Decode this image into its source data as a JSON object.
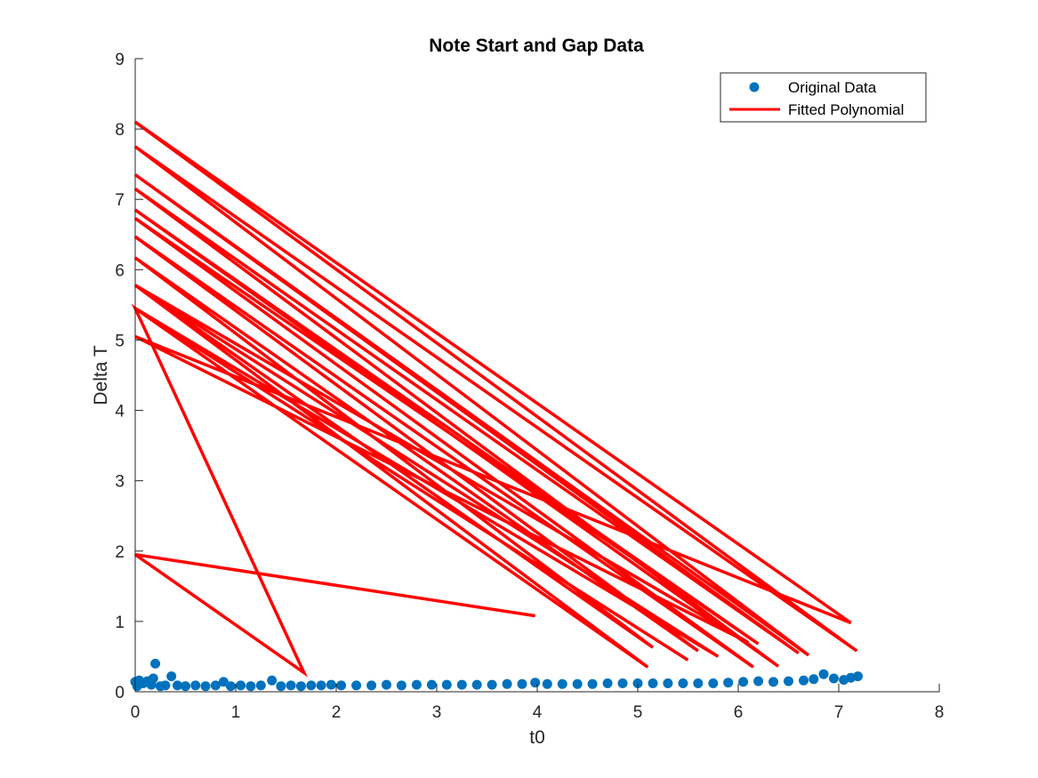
{
  "chart_data": {
    "type": "scatter",
    "title": "Note Start and Gap Data",
    "xlabel": "t0",
    "ylabel": "Delta T",
    "xlim": [
      0,
      8
    ],
    "ylim": [
      0,
      9
    ],
    "xticks": [
      0,
      1,
      2,
      3,
      4,
      5,
      6,
      7,
      8
    ],
    "yticks": [
      0,
      1,
      2,
      3,
      4,
      5,
      6,
      7,
      8,
      9
    ],
    "grid": false,
    "legend_position": "top-right",
    "colors": {
      "original": "#0072BD",
      "fitted": "#FF0000",
      "axis": "#262626"
    },
    "series": [
      {
        "name": "Original Data",
        "kind": "markers",
        "points": [
          [
            0.0,
            0.14
          ],
          [
            0.02,
            0.08
          ],
          [
            0.04,
            0.16
          ],
          [
            0.08,
            0.12
          ],
          [
            0.12,
            0.15
          ],
          [
            0.16,
            0.1
          ],
          [
            0.18,
            0.19
          ],
          [
            0.2,
            0.4
          ],
          [
            0.25,
            0.08
          ],
          [
            0.3,
            0.09
          ],
          [
            0.36,
            0.22
          ],
          [
            0.42,
            0.09
          ],
          [
            0.5,
            0.08
          ],
          [
            0.6,
            0.09
          ],
          [
            0.7,
            0.08
          ],
          [
            0.8,
            0.09
          ],
          [
            0.88,
            0.14
          ],
          [
            0.95,
            0.08
          ],
          [
            1.05,
            0.09
          ],
          [
            1.15,
            0.08
          ],
          [
            1.25,
            0.09
          ],
          [
            1.36,
            0.16
          ],
          [
            1.45,
            0.08
          ],
          [
            1.55,
            0.09
          ],
          [
            1.65,
            0.08
          ],
          [
            1.75,
            0.09
          ],
          [
            1.85,
            0.09
          ],
          [
            1.95,
            0.1
          ],
          [
            2.05,
            0.09
          ],
          [
            2.2,
            0.09
          ],
          [
            2.35,
            0.09
          ],
          [
            2.5,
            0.1
          ],
          [
            2.65,
            0.09
          ],
          [
            2.8,
            0.1
          ],
          [
            2.95,
            0.1
          ],
          [
            3.1,
            0.1
          ],
          [
            3.25,
            0.1
          ],
          [
            3.4,
            0.1
          ],
          [
            3.55,
            0.1
          ],
          [
            3.7,
            0.11
          ],
          [
            3.85,
            0.11
          ],
          [
            3.98,
            0.13
          ],
          [
            4.1,
            0.11
          ],
          [
            4.25,
            0.11
          ],
          [
            4.4,
            0.11
          ],
          [
            4.55,
            0.11
          ],
          [
            4.7,
            0.12
          ],
          [
            4.85,
            0.12
          ],
          [
            5.0,
            0.12
          ],
          [
            5.15,
            0.12
          ],
          [
            5.3,
            0.12
          ],
          [
            5.45,
            0.12
          ],
          [
            5.6,
            0.12
          ],
          [
            5.75,
            0.12
          ],
          [
            5.9,
            0.13
          ],
          [
            6.05,
            0.14
          ],
          [
            6.2,
            0.15
          ],
          [
            6.35,
            0.14
          ],
          [
            6.5,
            0.15
          ],
          [
            6.65,
            0.16
          ],
          [
            6.75,
            0.18
          ],
          [
            6.85,
            0.25
          ],
          [
            6.95,
            0.19
          ],
          [
            7.05,
            0.17
          ],
          [
            7.12,
            0.2
          ],
          [
            7.19,
            0.22
          ]
        ]
      },
      {
        "name": "Fitted Polynomial",
        "kind": "line",
        "points": [
          [
            0.0,
            1.95
          ],
          [
            3.98,
            1.08
          ],
          [
            0.0,
            1.95
          ],
          [
            1.68,
            0.27
          ],
          [
            0.0,
            5.45
          ],
          [
            5.1,
            0.35
          ],
          [
            0.0,
            5.78
          ],
          [
            5.15,
            0.63
          ],
          [
            0.0,
            6.17
          ],
          [
            5.6,
            0.58
          ],
          [
            0.0,
            6.47
          ],
          [
            6.15,
            0.35
          ],
          [
            0.0,
            6.73
          ],
          [
            6.2,
            0.68
          ],
          [
            0.0,
            6.85
          ],
          [
            6.4,
            0.36
          ],
          [
            0.0,
            7.15
          ],
          [
            6.6,
            0.55
          ],
          [
            0.0,
            7.35
          ],
          [
            6.7,
            0.52
          ],
          [
            0.0,
            7.75
          ],
          [
            7.18,
            0.58
          ],
          [
            0.0,
            8.1
          ],
          [
            7.12,
            0.98
          ],
          [
            0.0,
            5.05
          ],
          [
            6.1,
            0.7
          ],
          [
            0.0,
            5.78
          ],
          [
            5.8,
            0.5
          ],
          [
            0.0,
            5.45
          ],
          [
            5.5,
            0.45
          ]
        ]
      }
    ]
  }
}
